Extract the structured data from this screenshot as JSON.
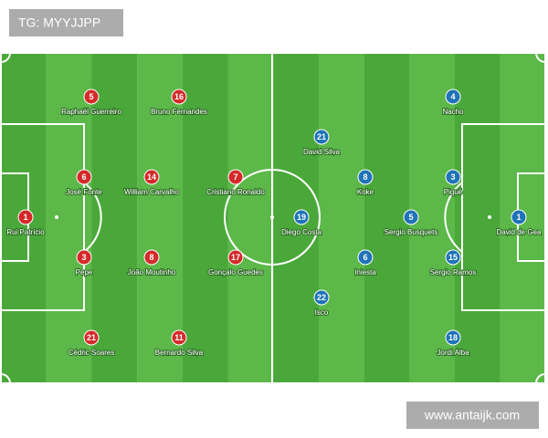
{
  "watermark_top": "TG: MYYJJPP",
  "watermark_bottom": "www.antaijk.com",
  "teams": [
    {
      "players": [
        {
          "number": 1,
          "name": "Rui Patrício"
        },
        {
          "number": 6,
          "name": "José Fonte"
        },
        {
          "number": 3,
          "name": "Pepe"
        },
        {
          "number": 5,
          "name": "Raphaël Guerreiro"
        },
        {
          "number": 21,
          "name": "Cédric Soares"
        },
        {
          "number": 14,
          "name": "William Carvalho"
        },
        {
          "number": 8,
          "name": "João Moutinho"
        },
        {
          "number": 16,
          "name": "Bruno Fernandes"
        },
        {
          "number": 11,
          "name": "Bernardo Silva"
        },
        {
          "number": 7,
          "name": "Cristiano Ronaldo"
        },
        {
          "number": 17,
          "name": "Gonçalo Guedes"
        }
      ]
    },
    {
      "players": [
        {
          "number": 1,
          "name": "David de Gea"
        },
        {
          "number": 4,
          "name": "Nacho"
        },
        {
          "number": 3,
          "name": "Piqué"
        },
        {
          "number": 15,
          "name": "Sergio Ramos"
        },
        {
          "number": 18,
          "name": "Jordi Alba"
        },
        {
          "number": 5,
          "name": "Sergio Busquets"
        },
        {
          "number": 8,
          "name": "Koke"
        },
        {
          "number": 6,
          "name": "Iniesta"
        },
        {
          "number": 21,
          "name": "David Silva"
        },
        {
          "number": 22,
          "name": "Isco"
        },
        {
          "number": 19,
          "name": "Diego Costa"
        }
      ]
    }
  ]
}
